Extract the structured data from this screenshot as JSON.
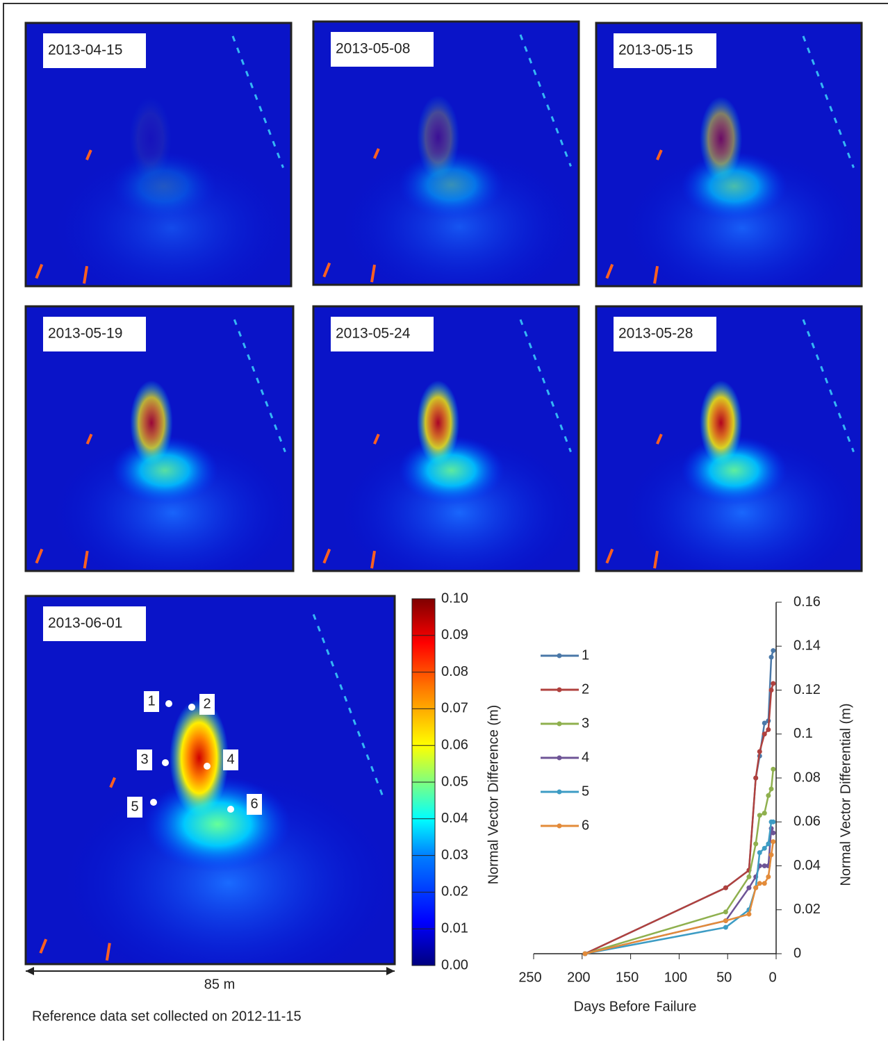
{
  "panels": [
    "2013-04-15",
    "2013-05-08",
    "2013-05-15",
    "2013-05-19",
    "2013-05-24",
    "2013-05-28",
    "2013-06-01"
  ],
  "scale_label": "85 m",
  "reference_note": "Reference data set collected on 2012-11-15",
  "colorbar": {
    "label": "Normal Vector Difference (m)",
    "lim": [
      0,
      0.1
    ],
    "ticks": [
      {
        "value": 0,
        "label": "0.00"
      },
      {
        "value": 0.01,
        "label": "0.01"
      },
      {
        "value": 0.02,
        "label": "0.02"
      },
      {
        "value": 0.03,
        "label": "0.03"
      },
      {
        "value": 0.04,
        "label": "0.04"
      },
      {
        "value": 0.05,
        "label": "0.05"
      },
      {
        "value": 0.06,
        "label": "0.06"
      },
      {
        "value": 0.07,
        "label": "0.07"
      },
      {
        "value": 0.08,
        "label": "0.08"
      },
      {
        "value": 0.09,
        "label": "0.09"
      },
      {
        "value": 0.1,
        "label": "0.10"
      }
    ]
  },
  "chart_data": {
    "type": "line",
    "xlabel": "Days Before Failure",
    "ylabel": "Normal Vector Differential (m)",
    "x": [
      197,
      52,
      28,
      21,
      17,
      12,
      8,
      5,
      3
    ],
    "xlim": [
      250,
      0
    ],
    "xticks": [
      250,
      200,
      150,
      100,
      50,
      0
    ],
    "y2lim": [
      0,
      0.16
    ],
    "y2ticks": [
      0,
      0.02,
      0.04,
      0.06,
      0.08,
      0.1,
      0.12,
      0.14,
      0.16
    ],
    "series": [
      {
        "name": "1",
        "color": "#4a78a8",
        "axis": "y2",
        "values": [
          0,
          0.03,
          0.038,
          0.08,
          0.09,
          0.105,
          0.106,
          0.135,
          0.138
        ]
      },
      {
        "name": "2",
        "color": "#b0413e",
        "axis": "y2",
        "values": [
          0,
          0.03,
          0.038,
          0.08,
          0.092,
          0.1,
          0.102,
          0.12,
          0.123
        ]
      },
      {
        "name": "3",
        "color": "#8fb04e",
        "axis": "y2",
        "values": [
          0,
          0.019,
          0.035,
          0.05,
          0.063,
          0.064,
          0.072,
          0.075,
          0.084
        ]
      },
      {
        "name": "4",
        "color": "#6e5496",
        "axis": "y2",
        "values": [
          0,
          0.015,
          0.03,
          0.035,
          0.04,
          0.04,
          0.04,
          0.057,
          0.055
        ]
      },
      {
        "name": "5",
        "color": "#3d9cc4",
        "axis": "y2",
        "values": [
          0,
          0.012,
          0.02,
          0.03,
          0.046,
          0.048,
          0.05,
          0.06,
          0.06
        ]
      },
      {
        "name": "6",
        "color": "#e38b3a",
        "axis": "y2",
        "values": [
          0,
          0.015,
          0.018,
          0.03,
          0.032,
          0.032,
          0.035,
          0.045,
          0.051
        ]
      }
    ]
  }
}
